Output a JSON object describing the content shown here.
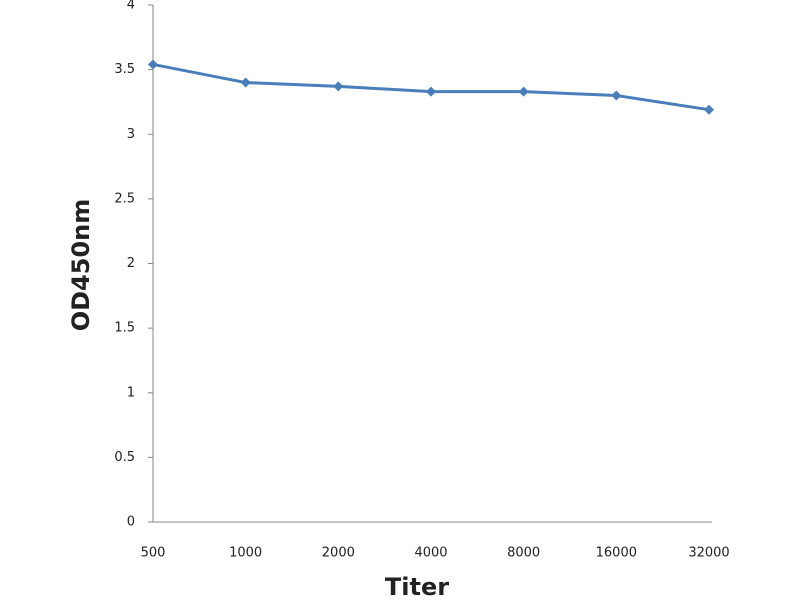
{
  "chart_data": {
    "type": "line",
    "x_label": "Titer",
    "y_label": "OD450nm",
    "categories": [
      "500",
      "1000",
      "2000",
      "4000",
      "8000",
      "16000",
      "32000"
    ],
    "series": [
      {
        "color": "#4a7ebb",
        "values": [
          3.54,
          3.4,
          3.37,
          3.33,
          3.33,
          3.3,
          3.19
        ]
      }
    ],
    "ylim": [
      0,
      4
    ],
    "yticks": [
      0,
      0.5,
      1,
      1.5,
      2,
      2.5,
      3,
      3.5,
      4
    ],
    "grid": false
  }
}
